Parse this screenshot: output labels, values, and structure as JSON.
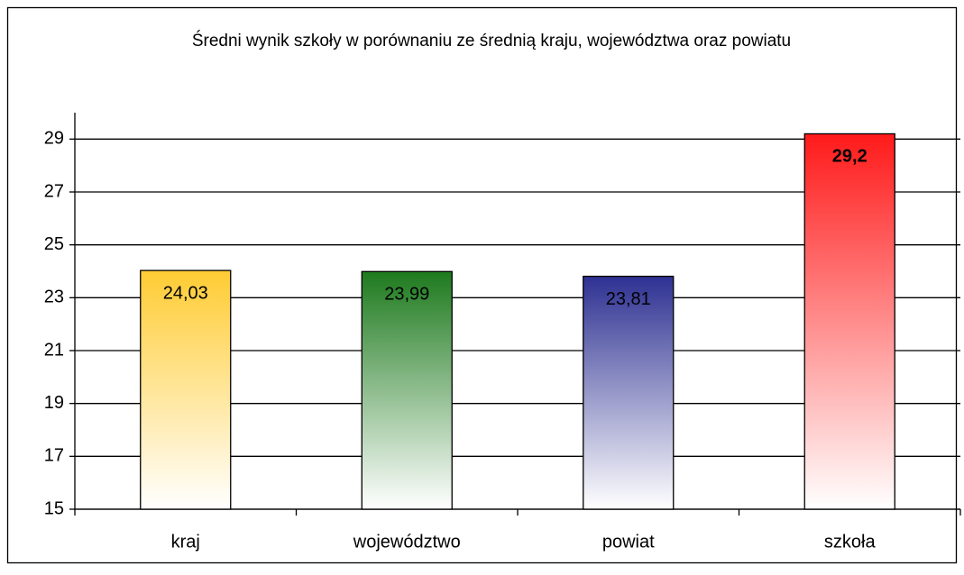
{
  "chart_data": {
    "type": "bar",
    "title": "Średni wynik szkoły w porównaniu ze średnią kraju, województwa oraz powiatu",
    "categories": [
      "kraj",
      "województwo",
      "powiat",
      "szkoła"
    ],
    "values": [
      24.03,
      23.99,
      23.81,
      29.2
    ],
    "value_labels": [
      "24,03",
      "23,99",
      "23,81",
      "29,2"
    ],
    "colors": [
      "#ffcc33",
      "#1e7a1e",
      "#2e3192",
      "#ff1a1a"
    ],
    "bold_labels": [
      false,
      false,
      false,
      true
    ],
    "ylim": [
      15,
      30
    ],
    "yticks": [
      15,
      17,
      19,
      21,
      23,
      25,
      27,
      29
    ],
    "grid": true
  }
}
